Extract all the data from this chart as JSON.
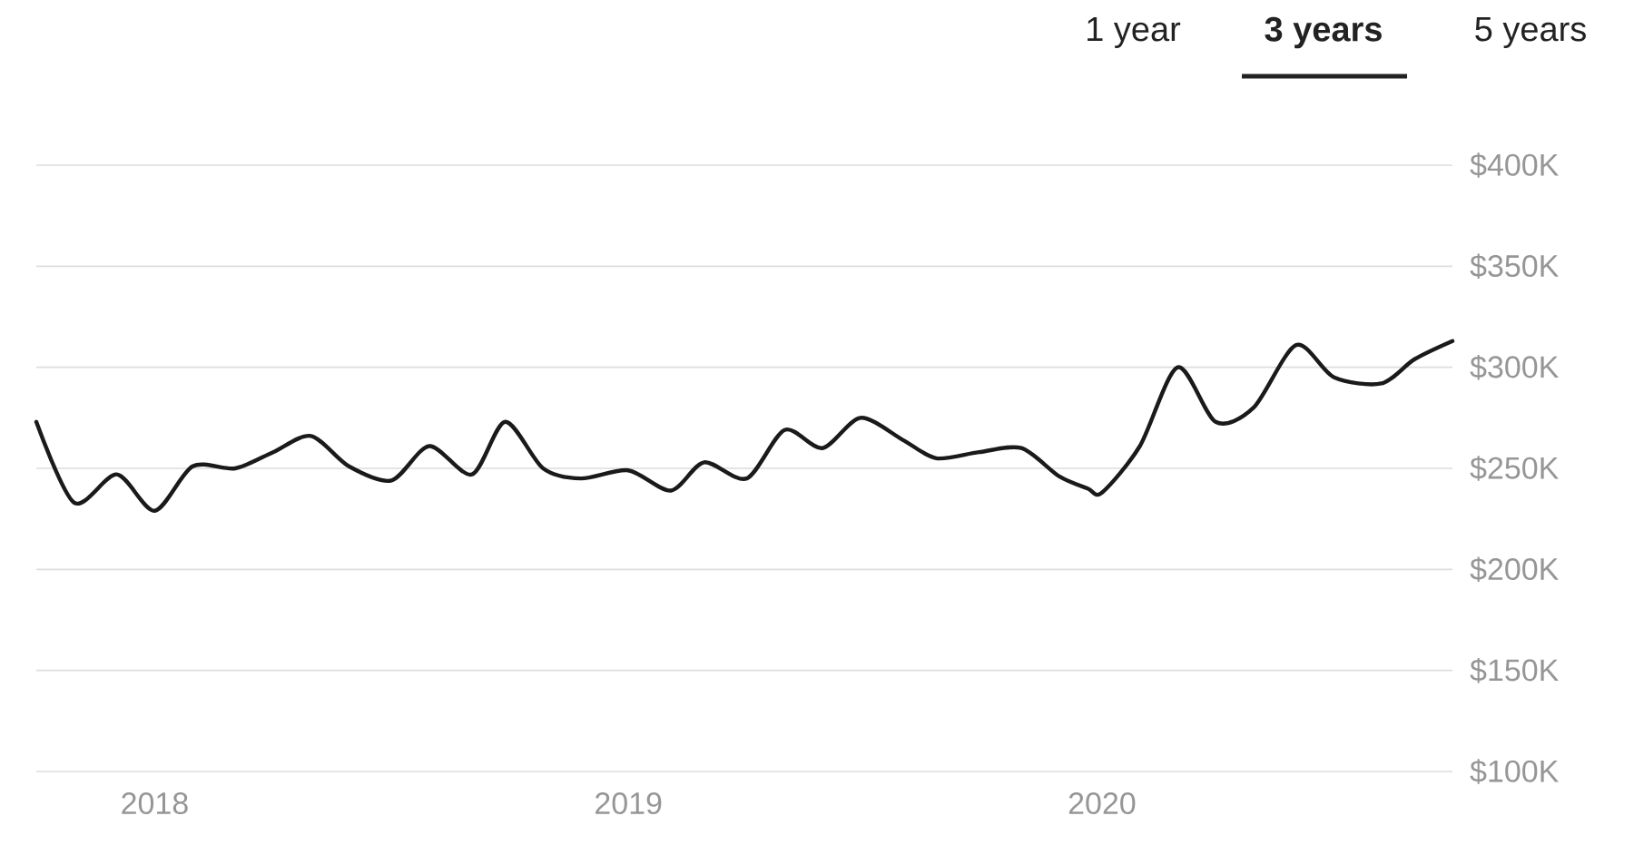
{
  "chart_data": {
    "type": "line",
    "annotations": [
      "1 year",
      "3 years",
      "5 years"
    ],
    "x": [
      2017.75,
      2017.83,
      2017.92,
      2018.0,
      2018.08,
      2018.17,
      2018.25,
      2018.33,
      2018.41,
      2018.5,
      2018.58,
      2018.67,
      2018.74,
      2018.82,
      2018.9,
      2019.0,
      2019.09,
      2019.16,
      2019.25,
      2019.33,
      2019.41,
      2019.49,
      2019.58,
      2019.65,
      2019.74,
      2019.83,
      2019.91,
      2019.97,
      2020.0,
      2020.08,
      2020.16,
      2020.24,
      2020.32,
      2020.41,
      2020.49,
      2020.59,
      2020.66,
      2020.74
    ],
    "series": [
      {
        "color": "#1a1a1a",
        "values": [
          273,
          233,
          247,
          229,
          251,
          250,
          258,
          266,
          251,
          244,
          261,
          247,
          273,
          250,
          245,
          249,
          239,
          253,
          245,
          269,
          260,
          275,
          264,
          255,
          258,
          260,
          246,
          240,
          238,
          261,
          300,
          273,
          280,
          311,
          295,
          292,
          304,
          313
        ]
      }
    ],
    "xlim": [
      2017.75,
      2020.74
    ],
    "xticks": [
      2018,
      2019,
      2020
    ],
    "ylim": [
      100,
      400
    ],
    "yticks": [
      {
        "value": 100,
        "label": "$100K"
      },
      {
        "value": 150,
        "label": "$150K"
      },
      {
        "value": 200,
        "label": "$200K"
      },
      {
        "value": 250,
        "label": "$250K"
      },
      {
        "value": 300,
        "label": "$300K"
      },
      {
        "value": 350,
        "label": "$350K"
      },
      {
        "value": 400,
        "label": "$400K"
      }
    ],
    "grid": "y"
  }
}
